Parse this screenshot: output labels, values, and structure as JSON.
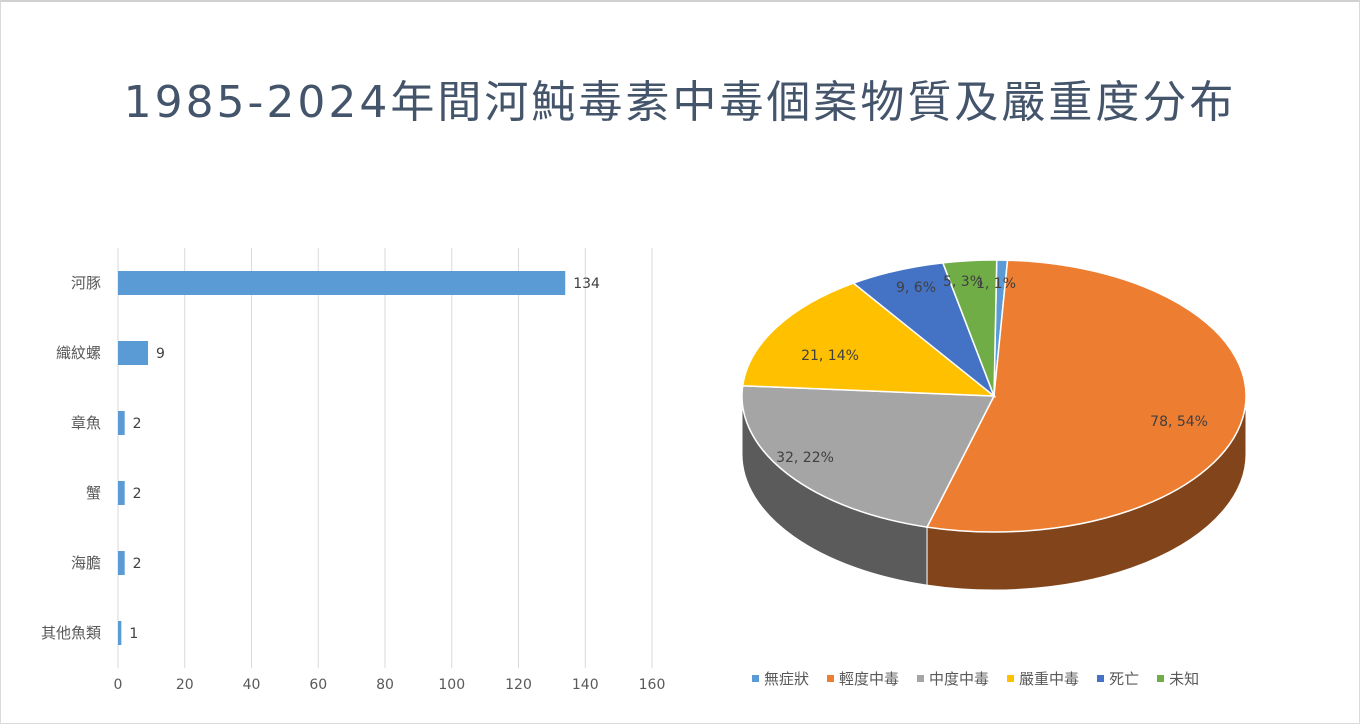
{
  "title": "1985-2024年間河魨毒素中毒個案物質及嚴重度分布",
  "chart_data": [
    {
      "type": "bar",
      "orientation": "horizontal",
      "categories": [
        "河豚",
        "織紋螺",
        "章魚",
        "蟹",
        "海膽",
        "其他魚類"
      ],
      "values": [
        134,
        9,
        2,
        2,
        2,
        1
      ],
      "xlim": [
        0,
        160
      ],
      "xticks": [
        "0",
        "20",
        "40",
        "60",
        "80",
        "100",
        "120",
        "140",
        "160"
      ],
      "grid": true,
      "color": "#5b9bd5"
    },
    {
      "type": "pie",
      "style": "3d",
      "slices": [
        {
          "name": "無症狀",
          "value": 1,
          "label": "1, 1%",
          "color": "#5b9bd5"
        },
        {
          "name": "輕度中毒",
          "value": 78,
          "label": "78, 54%",
          "color": "#ed7d31"
        },
        {
          "name": "中度中毒",
          "value": 32,
          "label": "32, 22%",
          "color": "#a5a5a5"
        },
        {
          "name": "嚴重中毒",
          "value": 21,
          "label": "21, 14%",
          "color": "#ffc000"
        },
        {
          "name": "死亡",
          "value": 9,
          "label": "9, 6%",
          "color": "#4472c4"
        },
        {
          "name": "未知",
          "value": 5,
          "label": "5, 3%",
          "color": "#70ad47"
        }
      ],
      "legend_position": "bottom"
    }
  ]
}
